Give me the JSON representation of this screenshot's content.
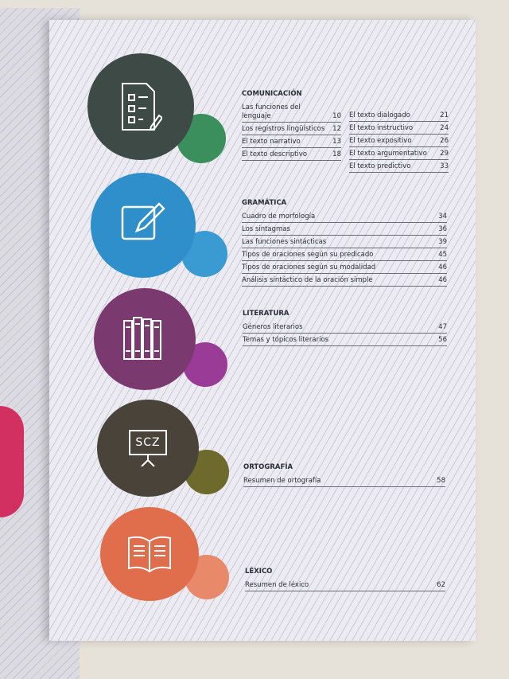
{
  "sections": [
    {
      "title": "COMUNICACIÓN",
      "icon": "checklist-document-icon",
      "color": "#3e4a45",
      "accent": "#3b8f5c",
      "col1": [
        {
          "label": "Las funciones del lenguaje",
          "page": "10"
        },
        {
          "label": "Los registros lingüísticos",
          "page": "12"
        },
        {
          "label": "El texto narrativo",
          "page": "13"
        },
        {
          "label": "El texto descriptivo",
          "page": "18"
        }
      ],
      "col2": [
        {
          "label": "El texto dialogado",
          "page": "21"
        },
        {
          "label": "El texto instructivo",
          "page": "24"
        },
        {
          "label": "El texto expositivo",
          "page": "26"
        },
        {
          "label": "El texto argumentativo",
          "page": "29"
        },
        {
          "label": "El texto predictivo",
          "page": "33"
        }
      ]
    },
    {
      "title": "GRAMÁTICA",
      "icon": "pencil-edit-icon",
      "color": "#2f8fca",
      "accent": "#3a9bd2",
      "items": [
        {
          "label": "Cuadro de morfología",
          "page": "34"
        },
        {
          "label": "Los sintagmas",
          "page": "36"
        },
        {
          "label": "Las funciones sintácticas",
          "page": "39"
        },
        {
          "label": "Tipos de oraciones según su predicado",
          "page": "45"
        },
        {
          "label": "Tipos de oraciones según su modalidad",
          "page": "46"
        },
        {
          "label": "Análisis sintáctico de la oración simple",
          "page": "46"
        }
      ]
    },
    {
      "title": "LITERATURA",
      "icon": "books-icon",
      "color": "#7b3a6f",
      "accent": "#9a3b98",
      "items": [
        {
          "label": "Géneros literarios",
          "page": "47"
        },
        {
          "label": "Temas y tópicos literarios",
          "page": "56"
        }
      ]
    },
    {
      "title": "ORTOGRAFÍA",
      "icon": "presentation-board-icon",
      "icon_text": "SCZ",
      "color": "#4a4339",
      "accent": "#6d6a2c",
      "items": [
        {
          "label": "Resumen de ortografía",
          "page": "58"
        }
      ]
    },
    {
      "title": "LÉXICO",
      "icon": "open-book-icon",
      "color": "#e06d4c",
      "accent": "#e88a6a",
      "items": [
        {
          "label": "Resumen de léxico",
          "page": "62"
        }
      ]
    }
  ]
}
